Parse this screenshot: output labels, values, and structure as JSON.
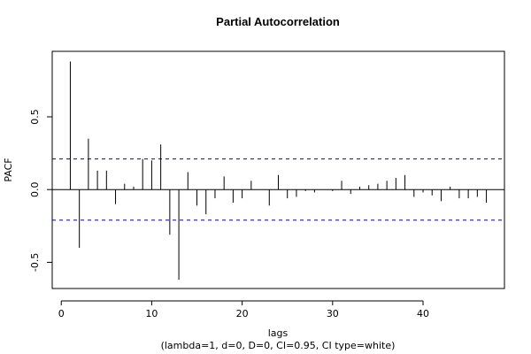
{
  "chart_data": {
    "type": "bar",
    "title": "Partial Autocorrelation",
    "xlabel": "lags",
    "subtitle": "(lambda=1, d=0, D=0, CI=0.95, CI type=white)",
    "ylabel": "PACF",
    "xlim": [
      -1,
      49
    ],
    "ylim": [
      -0.68,
      0.95
    ],
    "x_ticks": [
      0,
      10,
      20,
      30,
      40
    ],
    "x_tick_labels": [
      "0",
      "10",
      "20",
      "30",
      "40"
    ],
    "y_ticks": [
      -0.5,
      0.0,
      0.5
    ],
    "y_tick_labels": [
      "-0.5",
      "0.0",
      "0.5"
    ],
    "ci_upper": 0.21,
    "ci_lower": -0.21,
    "lags": [
      1,
      2,
      3,
      4,
      5,
      6,
      7,
      8,
      9,
      10,
      11,
      12,
      13,
      14,
      15,
      16,
      17,
      18,
      19,
      20,
      21,
      22,
      23,
      24,
      25,
      26,
      27,
      28,
      29,
      30,
      31,
      32,
      33,
      34,
      35,
      36,
      37,
      38,
      39,
      40,
      41,
      42,
      43,
      44,
      45,
      46,
      47,
      48
    ],
    "values": [
      0.88,
      -0.4,
      0.35,
      0.13,
      0.13,
      -0.1,
      0.04,
      0.02,
      0.21,
      0.2,
      0.31,
      -0.31,
      -0.62,
      0.12,
      -0.11,
      -0.17,
      -0.06,
      0.09,
      -0.09,
      -0.06,
      0.06,
      0.0,
      -0.11,
      0.1,
      -0.06,
      -0.05,
      -0.01,
      -0.02,
      0.0,
      -0.01,
      0.06,
      -0.03,
      0.02,
      0.03,
      0.04,
      0.06,
      0.08,
      0.1,
      -0.05,
      -0.02,
      -0.04,
      -0.08,
      0.02,
      -0.06,
      -0.06,
      -0.05,
      -0.09,
      0.0
    ],
    "grid": false
  }
}
